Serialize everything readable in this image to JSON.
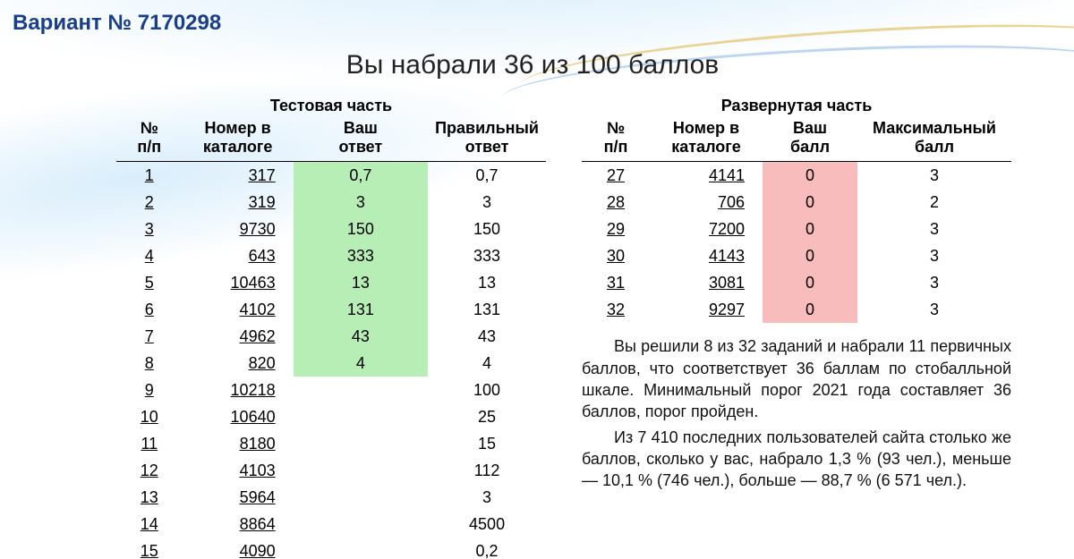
{
  "variant_label": "Вариант № 7170298",
  "score_headline": "Вы набрали 36 из 100 баллов",
  "colors": {
    "heading": "#1a3f8a",
    "correct_bg": "#b6eeb6",
    "wrong_bg": "#f8bcbc",
    "text": "#111111",
    "background": "#ffffff"
  },
  "left": {
    "title": "Тестовая часть",
    "headers": {
      "idx_l1": "№",
      "idx_l2": "п/п",
      "cat_l1": "Номер в",
      "cat_l2": "каталоге",
      "ans_l1": "Ваш",
      "ans_l2": "ответ",
      "cor_l1": "Правильный",
      "cor_l2": "ответ"
    },
    "rows": [
      {
        "n": "1",
        "cat": "317",
        "ans": "0,7",
        "cor": "0,7",
        "state": "green"
      },
      {
        "n": "2",
        "cat": "319",
        "ans": "3",
        "cor": "3",
        "state": "green"
      },
      {
        "n": "3",
        "cat": "9730",
        "ans": "150",
        "cor": "150",
        "state": "green"
      },
      {
        "n": "4",
        "cat": "643",
        "ans": "333",
        "cor": "333",
        "state": "green"
      },
      {
        "n": "5",
        "cat": "10463",
        "ans": "13",
        "cor": "13",
        "state": "green"
      },
      {
        "n": "6",
        "cat": "4102",
        "ans": "131",
        "cor": "131",
        "state": "green"
      },
      {
        "n": "7",
        "cat": "4962",
        "ans": "43",
        "cor": "43",
        "state": "green"
      },
      {
        "n": "8",
        "cat": "820",
        "ans": "4",
        "cor": "4",
        "state": "green"
      },
      {
        "n": "9",
        "cat": "10218",
        "ans": "",
        "cor": "100",
        "state": ""
      },
      {
        "n": "10",
        "cat": "10640",
        "ans": "",
        "cor": "25",
        "state": ""
      },
      {
        "n": "11",
        "cat": "8180",
        "ans": "",
        "cor": "15",
        "state": ""
      },
      {
        "n": "12",
        "cat": "4103",
        "ans": "",
        "cor": "112",
        "state": ""
      },
      {
        "n": "13",
        "cat": "5964",
        "ans": "",
        "cor": "3",
        "state": ""
      },
      {
        "n": "14",
        "cat": "8864",
        "ans": "",
        "cor": "4500",
        "state": ""
      },
      {
        "n": "15",
        "cat": "4090",
        "ans": "",
        "cor": "0,2",
        "state": ""
      }
    ]
  },
  "right": {
    "title": "Развернутая часть",
    "headers": {
      "idx_l1": "№",
      "idx_l2": "п/п",
      "cat_l1": "Номер в",
      "cat_l2": "каталоге",
      "scr_l1": "Ваш",
      "scr_l2": "балл",
      "max_l1": "Максимальный",
      "max_l2": "балл"
    },
    "rows": [
      {
        "n": "27",
        "cat": "4141",
        "score": "0",
        "max": "3",
        "state": "red"
      },
      {
        "n": "28",
        "cat": "706",
        "score": "0",
        "max": "2",
        "state": "red"
      },
      {
        "n": "29",
        "cat": "7200",
        "score": "0",
        "max": "3",
        "state": "red"
      },
      {
        "n": "30",
        "cat": "4143",
        "score": "0",
        "max": "3",
        "state": "red"
      },
      {
        "n": "31",
        "cat": "3081",
        "score": "0",
        "max": "3",
        "state": "red"
      },
      {
        "n": "32",
        "cat": "9297",
        "score": "0",
        "max": "3",
        "state": "red"
      }
    ]
  },
  "summary": {
    "p1": "Вы решили 8 из 32 заданий и набрали 11 первичных баллов, что соответствует 36 баллам по стобалльной шкале. Минимальный порог 2021 года составляет 36 баллов, порог пройден.",
    "p2": "Из 7 410 последних пользователей сайта столько же баллов, сколько у вас, набрало 1,3 % (93 чел.), меньше — 10,1 % (746 чел.), больше — 88,7 % (6 571 чел.)."
  }
}
